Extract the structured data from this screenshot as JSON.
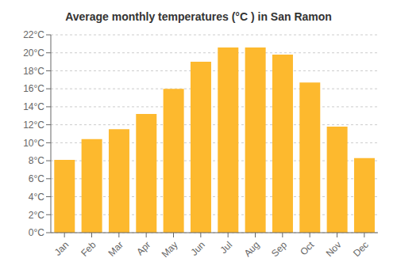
{
  "chart_data": {
    "type": "bar",
    "title": "Average monthly temperatures (°C ) in San Ramon",
    "categories": [
      "Jan",
      "Feb",
      "Mar",
      "Apr",
      "May",
      "Jun",
      "Jul",
      "Aug",
      "Sep",
      "Oct",
      "Nov",
      "Dec"
    ],
    "values": [
      8.1,
      10.4,
      11.5,
      13.2,
      16.0,
      19.0,
      20.6,
      20.6,
      19.8,
      16.7,
      11.8,
      8.3
    ],
    "color": "#FDB92E",
    "ylim": [
      0,
      22
    ],
    "yticks": [
      {
        "value": 0,
        "label": "0°C"
      },
      {
        "value": 2,
        "label": "2°C"
      },
      {
        "value": 4,
        "label": "4°C"
      },
      {
        "value": 6,
        "label": "6°C"
      },
      {
        "value": 8,
        "label": "8°C"
      },
      {
        "value": 10,
        "label": "10°C"
      },
      {
        "value": 12,
        "label": "12°C"
      },
      {
        "value": 14,
        "label": "14°C"
      },
      {
        "value": 16,
        "label": "16°C"
      },
      {
        "value": 18,
        "label": "18°C"
      },
      {
        "value": 20,
        "label": "20°C"
      },
      {
        "value": 22,
        "label": "22°C"
      }
    ],
    "grid": true
  }
}
